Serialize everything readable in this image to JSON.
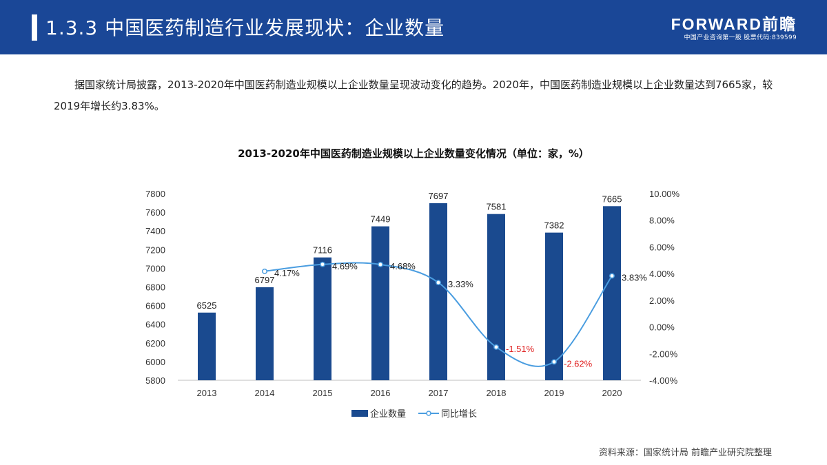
{
  "header": {
    "title": "1.3.3 中国医药制造行业发展现状：企业数量",
    "brand_name": "FORWARD前瞻",
    "brand_sub": "中国产业咨询第一股  股票代码:839599"
  },
  "intro": "据国家统计局披露，2013-2020年中国医药制造业规模以上企业数量呈现波动变化的趋势。2020年，中国医药制造业规模以上企业数量达到7665家，较2019年增长约3.83%。",
  "source": "资料来源：国家统计局 前瞻产业研究院整理",
  "colors": {
    "header": "#1a4797",
    "bar": "#1a4a8f",
    "line": "#4a9de0",
    "negative": "#e02020"
  },
  "chart_data": {
    "type": "bar+line",
    "title": "2013-2020年中国医药制造业规模以上企业数量变化情况（单位：家，%）",
    "categories": [
      "2013",
      "2014",
      "2015",
      "2016",
      "2017",
      "2018",
      "2019",
      "2020"
    ],
    "y_left": {
      "range": [
        5800,
        7800
      ],
      "ticks": [
        "5800",
        "6000",
        "6200",
        "6400",
        "6600",
        "6800",
        "7000",
        "7200",
        "7400",
        "7600",
        "7800"
      ]
    },
    "y_right": {
      "range": [
        -4,
        10
      ],
      "ticks": [
        "-4.00%",
        "-2.00%",
        "0.00%",
        "2.00%",
        "4.00%",
        "6.00%",
        "8.00%",
        "10.00%"
      ]
    },
    "series": [
      {
        "name": "企业数量",
        "type": "bar",
        "values": [
          6525,
          6797,
          7116,
          7449,
          7697,
          7581,
          7382,
          7665
        ],
        "labels": [
          "6525",
          "6797",
          "7116",
          "7449",
          "7697",
          "7581",
          "7382",
          "7665"
        ]
      },
      {
        "name": "同比增长",
        "type": "line",
        "axis": "right",
        "x": [
          "2014",
          "2015",
          "2016",
          "2017",
          "2018",
          "2019",
          "2020"
        ],
        "values": [
          4.17,
          4.69,
          4.68,
          3.33,
          -1.51,
          -2.62,
          3.83
        ],
        "labels": [
          "4.17%",
          "4.69%",
          "4.68%",
          "3.33%",
          "-1.51%",
          "-2.62%",
          "3.83%"
        ]
      }
    ],
    "legend_position": "bottom"
  }
}
